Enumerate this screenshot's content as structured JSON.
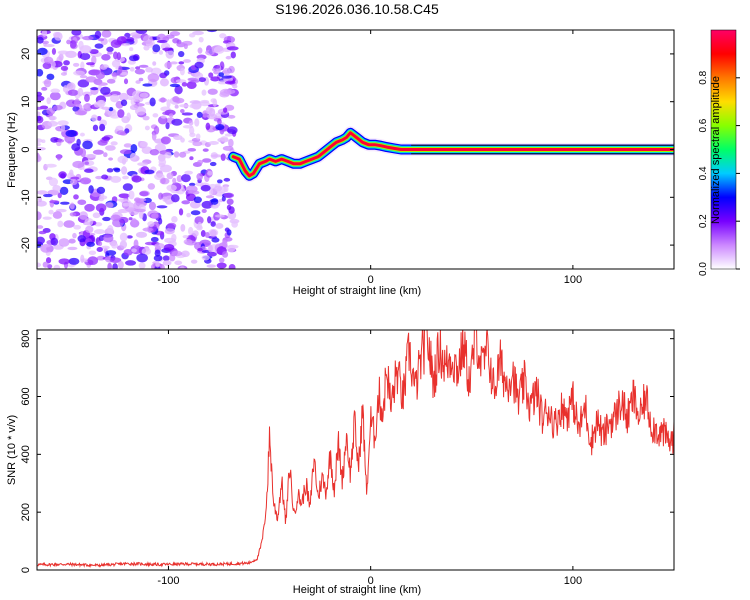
{
  "title": "S196.2026.036.10.58.C45",
  "colors": {
    "line": "#e8312d",
    "axis": "#000000",
    "background": "#ffffff"
  },
  "chart_data": [
    {
      "type": "heatmap",
      "name": "spectrogram",
      "xlabel": "Height of straight line (km)",
      "ylabel": "Frequency (Hz)",
      "xlim": [
        -165,
        150
      ],
      "ylim": [
        -25,
        25
      ],
      "xticks": [
        -100,
        0,
        100
      ],
      "yticks": [
        -20,
        -10,
        0,
        10,
        20
      ],
      "colorbar": {
        "label": "Normalized spectral amplitude",
        "range": [
          0,
          1
        ],
        "ticks": [
          0.0,
          0.2,
          0.4,
          0.6,
          0.8
        ],
        "tick_labels": [
          "0.0",
          "0.2",
          "0.4",
          "0.6",
          "0.8"
        ],
        "colormap": [
          "#ffffff",
          "#cc88ff",
          "#7700ff",
          "#0000ff",
          "#00ccff",
          "#00ff66",
          "#88ff00",
          "#ffdd00",
          "#ff7700",
          "#ff0000",
          "#ff0066"
        ]
      },
      "noise_region": {
        "x": [
          -165,
          -67
        ],
        "level": [
          0.05,
          0.3
        ]
      },
      "ridge": {
        "x": [
          -68,
          -65,
          -62,
          -60,
          -58,
          -55,
          -52,
          -50,
          -47,
          -44,
          -41,
          -38,
          -35,
          -32,
          -29,
          -26,
          -23,
          -20,
          -17,
          -14,
          -12,
          -10,
          -7,
          -4,
          -1,
          2,
          5,
          8,
          12,
          15,
          20,
          30,
          50,
          70,
          100,
          130,
          150
        ],
        "y": [
          -1.5,
          -2.0,
          -4.5,
          -5.5,
          -5.0,
          -3.0,
          -2.5,
          -2.0,
          -2.5,
          -2.0,
          -2.5,
          -3.0,
          -3.0,
          -2.5,
          -2.0,
          -1.5,
          -0.5,
          0.5,
          1.5,
          2.0,
          2.5,
          3.5,
          2.5,
          1.5,
          1.0,
          1.0,
          0.8,
          0.5,
          0.2,
          0.0,
          0.0,
          0.0,
          0.0,
          0.0,
          0.0,
          0.0,
          0.0
        ]
      }
    },
    {
      "type": "line",
      "name": "snr",
      "xlabel": "Height of straight line (km)",
      "ylabel": "SNR (10 * v/v)",
      "xlim": [
        -165,
        150
      ],
      "ylim": [
        0,
        830
      ],
      "xticks": [
        -100,
        0,
        100
      ],
      "yticks": [
        0,
        200,
        400,
        600,
        800
      ],
      "x": [
        -165,
        -150,
        -135,
        -120,
        -105,
        -90,
        -75,
        -60,
        -56,
        -54,
        -53,
        -52,
        -51,
        -50,
        -48,
        -46,
        -44,
        -42,
        -40,
        -38,
        -36,
        -34,
        -32,
        -30,
        -28,
        -26,
        -24,
        -22,
        -20,
        -18,
        -16,
        -14,
        -12,
        -10,
        -8,
        -6,
        -4,
        -2,
        0,
        2,
        4,
        6,
        8,
        10,
        13,
        16,
        19,
        22,
        25,
        28,
        31,
        34,
        37,
        40,
        43,
        46,
        49,
        52,
        55,
        58,
        61,
        64,
        67,
        70,
        73,
        76,
        79,
        82,
        85,
        88,
        91,
        94,
        97,
        100,
        103,
        106,
        109,
        112,
        115,
        118,
        121,
        124,
        127,
        130,
        133,
        136,
        139,
        142,
        145,
        148,
        150
      ],
      "y": [
        18,
        20,
        16,
        22,
        19,
        21,
        20,
        24,
        40,
        90,
        130,
        200,
        290,
        470,
        230,
        180,
        310,
        160,
        360,
        190,
        260,
        230,
        300,
        210,
        390,
        250,
        320,
        270,
        400,
        280,
        440,
        310,
        470,
        330,
        510,
        350,
        560,
        260,
        520,
        460,
        610,
        540,
        700,
        560,
        690,
        590,
        760,
        620,
        730,
        810,
        650,
        770,
        700,
        740,
        690,
        780,
        640,
        820,
        700,
        760,
        620,
        720,
        640,
        690,
        580,
        650,
        560,
        620,
        520,
        560,
        500,
        560,
        540,
        590,
        480,
        570,
        440,
        520,
        460,
        510,
        530,
        590,
        520,
        600,
        520,
        600,
        500,
        480,
        470,
        440,
        460
      ]
    }
  ]
}
